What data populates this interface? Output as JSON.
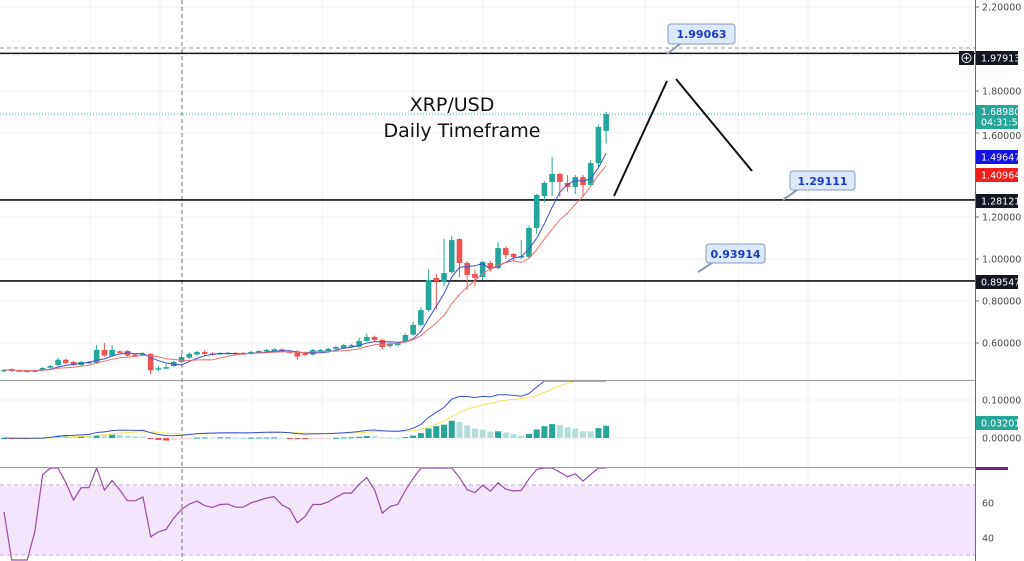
{
  "title": {
    "line1": "XRP/USD",
    "line2": "Daily Timeframe"
  },
  "colors": {
    "up": "#26a69a",
    "down": "#ef5350",
    "ma_fast": "#3d4fd1",
    "ma_slow": "#ef6f6f",
    "macd": "#3d4fd1",
    "signal": "#f2e85a",
    "rsi": "#9a4aa8",
    "rsi_band": "#f3e5fc"
  },
  "price_axis": {
    "ticks": [
      {
        "value": 2.2,
        "label": "2.20000"
      },
      {
        "value": 1.8,
        "label": "1.80000"
      },
      {
        "value": 1.6,
        "label": "1.60000"
      },
      {
        "value": 1.2,
        "label": "1.20000"
      },
      {
        "value": 1.0,
        "label": "1.00000"
      },
      {
        "value": 0.8,
        "label": "0.80000"
      },
      {
        "value": 0.6,
        "label": "0.60000"
      }
    ],
    "tags": {
      "resistance": {
        "label": "1.97913",
        "value": 1.97913,
        "color": "#131722"
      },
      "last": {
        "label": "1.68980",
        "countdown": "04:31:50",
        "value": 1.6898,
        "color": "#26a69a"
      },
      "ma_fast": {
        "label": "1.49647",
        "color": "#1414e6"
      },
      "ma_slow": {
        "label": "1.40964",
        "color": "#f21d1d"
      },
      "level_mid": {
        "label": "1.28121",
        "value": 1.28121,
        "color": "#131722"
      },
      "level_low": {
        "label": "0.89547",
        "value": 0.89547,
        "color": "#131722"
      }
    }
  },
  "macd_axis": {
    "ticks": [
      {
        "value": 0.1,
        "label": "0.10000"
      },
      {
        "value": 0.0,
        "label": "0.00000"
      }
    ],
    "tag": {
      "label": "0.03201",
      "color": "#26a69a"
    }
  },
  "rsi_axis": {
    "ticks": [
      {
        "value": 60,
        "label": "60"
      },
      {
        "value": 40,
        "label": "40"
      }
    ],
    "band": [
      30,
      70
    ]
  },
  "callouts": [
    {
      "label": "1.99063",
      "value": 1.99063
    },
    {
      "label": "1.29111",
      "value": 1.29111
    },
    {
      "label": "0.93914",
      "value": 0.93914
    }
  ],
  "chart_data": {
    "type": "candlestick",
    "title": "XRP/USD Daily Timeframe",
    "ylim": [
      0.424,
      2.233
    ],
    "grid": true,
    "ohlc_format": [
      "open",
      "high",
      "low",
      "close"
    ],
    "candles": [
      [
        0.465,
        0.475,
        0.46,
        0.472
      ],
      [
        0.476,
        0.48,
        0.462,
        0.468
      ],
      [
        0.47,
        0.474,
        0.462,
        0.466
      ],
      [
        0.466,
        0.47,
        0.46,
        0.468
      ],
      [
        0.467,
        0.473,
        0.462,
        0.47
      ],
      [
        0.47,
        0.485,
        0.466,
        0.481
      ],
      [
        0.482,
        0.495,
        0.478,
        0.49
      ],
      [
        0.495,
        0.53,
        0.49,
        0.52
      ],
      [
        0.52,
        0.525,
        0.5,
        0.505
      ],
      [
        0.51,
        0.515,
        0.49,
        0.495
      ],
      [
        0.495,
        0.515,
        0.49,
        0.51
      ],
      [
        0.505,
        0.515,
        0.5,
        0.51
      ],
      [
        0.505,
        0.59,
        0.5,
        0.567
      ],
      [
        0.567,
        0.6,
        0.535,
        0.54
      ],
      [
        0.54,
        0.59,
        0.535,
        0.567
      ],
      [
        0.56,
        0.565,
        0.55,
        0.555
      ],
      [
        0.562,
        0.566,
        0.535,
        0.54
      ],
      [
        0.545,
        0.55,
        0.535,
        0.54
      ],
      [
        0.545,
        0.556,
        0.54,
        0.548
      ],
      [
        0.548,
        0.552,
        0.45,
        0.47
      ],
      [
        0.475,
        0.49,
        0.465,
        0.48
      ],
      [
        0.48,
        0.5,
        0.475,
        0.485
      ],
      [
        0.49,
        0.515,
        0.485,
        0.51
      ],
      [
        0.51,
        0.545,
        0.505,
        0.533
      ],
      [
        0.53,
        0.555,
        0.525,
        0.548
      ],
      [
        0.545,
        0.562,
        0.54,
        0.557
      ],
      [
        0.557,
        0.566,
        0.54,
        0.548
      ],
      [
        0.55,
        0.556,
        0.54,
        0.545
      ],
      [
        0.55,
        0.558,
        0.545,
        0.552
      ],
      [
        0.55,
        0.558,
        0.545,
        0.553
      ],
      [
        0.553,
        0.558,
        0.542,
        0.548
      ],
      [
        0.553,
        0.558,
        0.542,
        0.548
      ],
      [
        0.548,
        0.562,
        0.544,
        0.557
      ],
      [
        0.557,
        0.566,
        0.552,
        0.562
      ],
      [
        0.56,
        0.572,
        0.556,
        0.567
      ],
      [
        0.562,
        0.575,
        0.558,
        0.57
      ],
      [
        0.57,
        0.575,
        0.555,
        0.56
      ],
      [
        0.56,
        0.566,
        0.55,
        0.555
      ],
      [
        0.56,
        0.565,
        0.52,
        0.535
      ],
      [
        0.55,
        0.556,
        0.54,
        0.545
      ],
      [
        0.545,
        0.572,
        0.54,
        0.567
      ],
      [
        0.562,
        0.572,
        0.556,
        0.567
      ],
      [
        0.562,
        0.578,
        0.558,
        0.572
      ],
      [
        0.572,
        0.588,
        0.568,
        0.581
      ],
      [
        0.576,
        0.595,
        0.572,
        0.59
      ],
      [
        0.585,
        0.596,
        0.58,
        0.59
      ],
      [
        0.582,
        0.625,
        0.578,
        0.61
      ],
      [
        0.61,
        0.645,
        0.605,
        0.629
      ],
      [
        0.629,
        0.635,
        0.61,
        0.615
      ],
      [
        0.614,
        0.62,
        0.57,
        0.581
      ],
      [
        0.585,
        0.6,
        0.575,
        0.595
      ],
      [
        0.59,
        0.605,
        0.585,
        0.6
      ],
      [
        0.605,
        0.645,
        0.6,
        0.638
      ],
      [
        0.64,
        0.7,
        0.635,
        0.686
      ],
      [
        0.686,
        0.77,
        0.68,
        0.757
      ],
      [
        0.757,
        0.95,
        0.75,
        0.9
      ],
      [
        0.91,
        0.93,
        0.76,
        0.895
      ],
      [
        0.89,
        1.095,
        0.87,
        0.933
      ],
      [
        0.938,
        1.11,
        0.93,
        1.09
      ],
      [
        1.095,
        1.1,
        0.914,
        0.981
      ],
      [
        0.981,
        0.99,
        0.852,
        0.924
      ],
      [
        0.929,
        0.95,
        0.87,
        0.91
      ],
      [
        0.914,
        0.99,
        0.9,
        0.986
      ],
      [
        0.981,
        0.99,
        0.94,
        0.957
      ],
      [
        0.957,
        1.08,
        0.95,
        1.052
      ],
      [
        1.052,
        1.06,
        1.0,
        1.019
      ],
      [
        1.024,
        1.03,
        0.99,
        1.01
      ],
      [
        1.01,
        1.09,
        1.0,
        1.014
      ],
      [
        1.01,
        1.16,
        1.0,
        1.148
      ],
      [
        1.148,
        1.31,
        1.12,
        1.305
      ],
      [
        1.3,
        1.37,
        1.27,
        1.362
      ],
      [
        1.367,
        1.486,
        1.3,
        1.405
      ],
      [
        1.405,
        1.41,
        1.295,
        1.367
      ],
      [
        1.362,
        1.4,
        1.32,
        1.343
      ],
      [
        1.343,
        1.4,
        1.31,
        1.39
      ],
      [
        1.39,
        1.4,
        1.3,
        1.352
      ],
      [
        1.352,
        1.47,
        1.35,
        1.457
      ],
      [
        1.457,
        1.64,
        1.43,
        1.629
      ],
      [
        1.61,
        1.7,
        1.55,
        1.69
      ]
    ]
  }
}
